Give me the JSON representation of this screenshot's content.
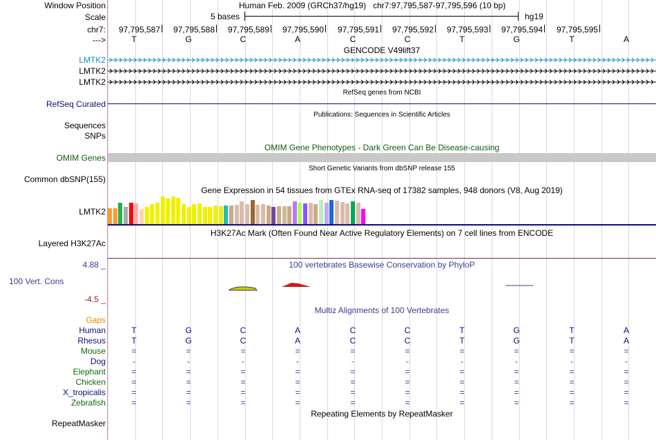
{
  "header": {
    "window_position_label": "Window Position",
    "window_position_value": "Human Feb. 2009 (GRCh37/hg19)   chr7:97,795,587-97,795,596 (10 bp)",
    "scale_label": "Scale",
    "scale_text": "5 bases",
    "scale_assembly": "hg19",
    "chrom_label": "chr7:",
    "strand_label": "--->",
    "positions": [
      "97,795,587",
      "97,795,588",
      "97,795,589",
      "97,795,590",
      "97,795,591",
      "97,795,592",
      "97,795,593",
      "97,795,594",
      "97,795,595"
    ],
    "bases": [
      "T",
      "G",
      "C",
      "A",
      "C",
      "C",
      "T",
      "G",
      "T",
      "A"
    ]
  },
  "tracks": {
    "gencode": {
      "title": "GENCODE V49lift37",
      "genes": [
        "LMTK2",
        "LMTK2",
        "LMTK2"
      ],
      "colors": [
        "#1e8bc3",
        "#000000",
        "#000000"
      ]
    },
    "refseq": {
      "title": "RefSeq genes from NCBI",
      "label": "RefSeq Curated",
      "color": "#0c0c78"
    },
    "publications": {
      "title": "Publications: Sequences in Scientific Articles",
      "labels": [
        "Sequences",
        "SNPs"
      ]
    },
    "omim": {
      "title": "OMIM Gene Phenotypes - Dark Green Can Be Disease-causing",
      "label": "OMIM Genes",
      "color": "#0b5c0b"
    },
    "dbsnp": {
      "title": "Short Genetic Variants from dbSNP release 155",
      "label": "Common dbSNP(155)"
    },
    "gtex": {
      "title": "Gene Expression in 54 tissues from GTEx RNA-seq of 17382 samples, 948 donors (V8, Aug 2019)",
      "label": "LMTK2"
    },
    "h3k27ac": {
      "title": "H3K27Ac Mark (Often Found Near Active Regulatory Elements) on 7 cell lines from ENCODE",
      "label": "Layered H3K27Ac"
    },
    "phylop": {
      "title": "100 vertebrates Basewise Conservation by PhyloP",
      "label": "100 Vert. Cons",
      "max_label": "4.88 _",
      "min_label": "-4.5 _",
      "color": "#3c3c8c"
    },
    "multiz": {
      "title": "Multiz Alignments of 100 Vertebrates",
      "gaps_label": "Gaps",
      "species": [
        {
          "name": "Human",
          "color": "#0c0c78",
          "bases": [
            "T",
            "G",
            "C",
            "A",
            "C",
            "C",
            "T",
            "G",
            "T",
            "A"
          ]
        },
        {
          "name": "Rhesus",
          "color": "#0c0c78",
          "bases": [
            "T",
            "G",
            "C",
            "A",
            "C",
            "C",
            "T",
            "G",
            "T",
            "A"
          ]
        },
        {
          "name": "Mouse",
          "color": "#0b6b0b",
          "bases": [
            "=",
            "=",
            "=",
            "=",
            "=",
            "=",
            "=",
            "=",
            "=",
            "="
          ]
        },
        {
          "name": "Dog",
          "color": "#0c0c78",
          "bases": [
            "-",
            "-",
            "-",
            "-",
            "-",
            "-",
            "-",
            "-",
            "-",
            "-"
          ]
        },
        {
          "name": "Elephant",
          "color": "#0b6b0b",
          "bases": [
            "=",
            "=",
            "=",
            "=",
            "=",
            "=",
            "=",
            "=",
            "=",
            "="
          ]
        },
        {
          "name": "Chicken",
          "color": "#0b6b0b",
          "bases": [
            "=",
            "=",
            "=",
            "=",
            "=",
            "=",
            "=",
            "=",
            "=",
            "="
          ]
        },
        {
          "name": "X_tropicalis",
          "color": "#0c0c78",
          "bases": [
            "=",
            "=",
            "=",
            "=",
            "=",
            "=",
            "=",
            "=",
            "=",
            "="
          ]
        },
        {
          "name": "Zebrafish",
          "color": "#0b6b0b",
          "bases": [
            "=",
            "=",
            "=",
            "=",
            "=",
            "=",
            "=",
            "=",
            "=",
            "="
          ]
        }
      ]
    },
    "repeatmasker": {
      "title": "Repeating Elements by RepeatMasker",
      "label": "RepeatMasker"
    }
  },
  "colors": {
    "gaps": "#d98c00",
    "phylop_max": "#3c3c8c",
    "phylop_min": "#8c1e1e",
    "omim_bar": "#c8c8c8"
  }
}
